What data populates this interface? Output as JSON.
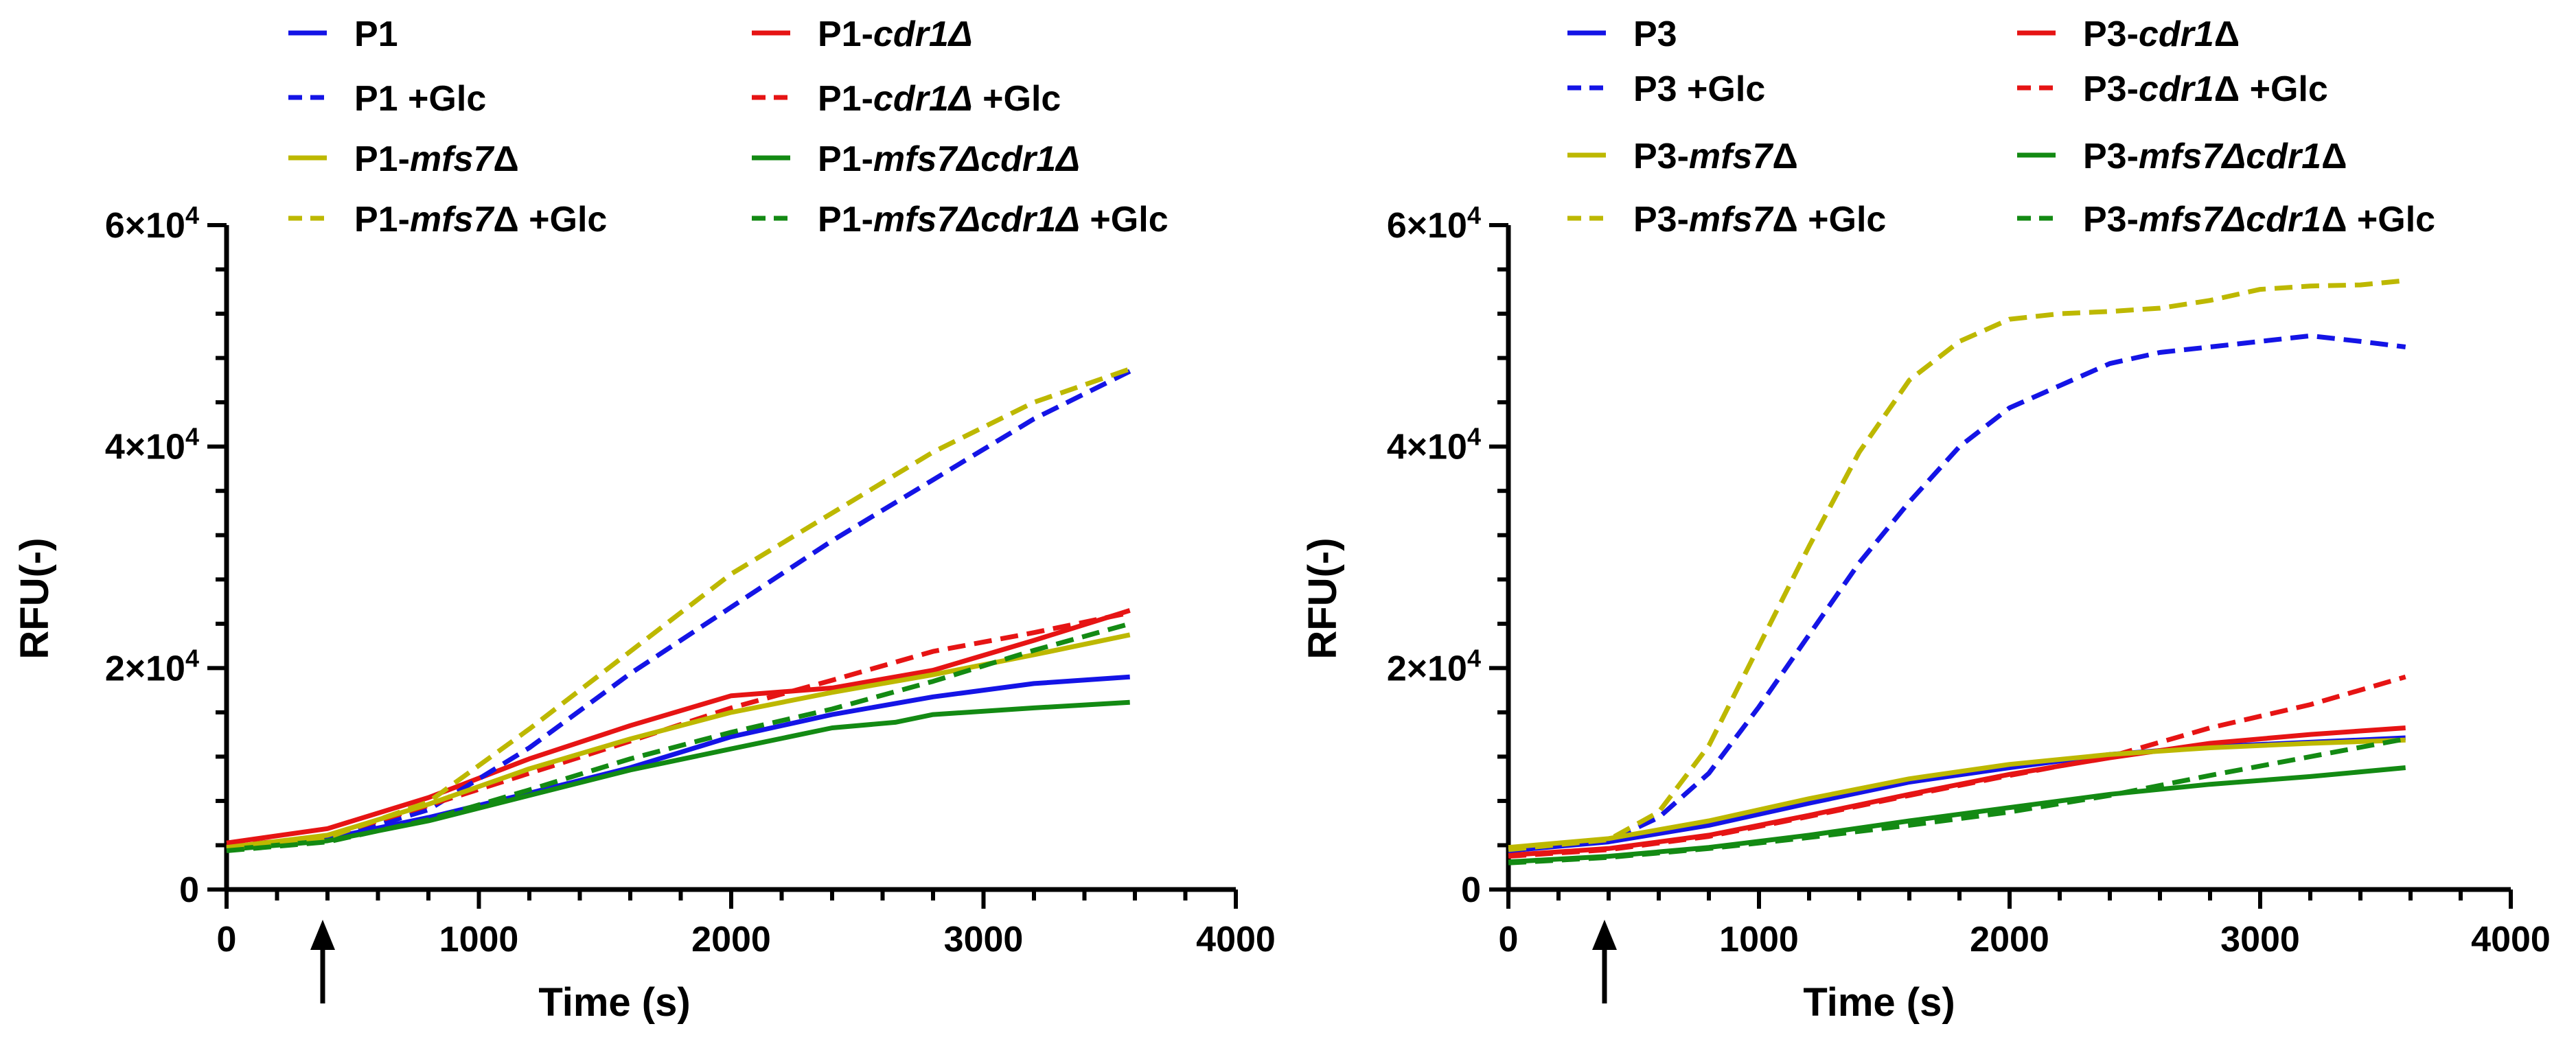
{
  "chart_data": [
    {
      "type": "line",
      "panel": "left",
      "xlabel": "Time (s)",
      "ylabel": "RFU(-)",
      "xlim": [
        0,
        4000
      ],
      "ylim": [
        0,
        60000
      ],
      "x_ticks": [
        "0",
        "1000",
        "2000",
        "3000",
        "4000"
      ],
      "y_ticks": [
        {
          "base": "0",
          "exp": ""
        },
        {
          "base": "2×10",
          "exp": "4"
        },
        {
          "base": "4×10",
          "exp": "4"
        },
        {
          "base": "6×10",
          "exp": "4"
        }
      ],
      "annotation": {
        "type": "arrow",
        "x": 400
      },
      "series": [
        {
          "name": "P1",
          "label_parts": [
            {
              "t": "P1"
            }
          ],
          "color": "#1414e6",
          "dash": "solid",
          "points": [
            [
              0,
              3600
            ],
            [
              400,
              4600
            ],
            [
              800,
              6500
            ],
            [
              1200,
              8700
            ],
            [
              1600,
              11000
            ],
            [
              2000,
              13800
            ],
            [
              2400,
              15800
            ],
            [
              2800,
              17400
            ],
            [
              3200,
              18600
            ],
            [
              3580,
              19200
            ]
          ]
        },
        {
          "name": "P1-cdr1Δ",
          "label_parts": [
            {
              "t": "P1-"
            },
            {
              "t": "cdr1Δ",
              "i": true
            }
          ],
          "color": "#e61414",
          "dash": "solid",
          "points": [
            [
              0,
              4200
            ],
            [
              400,
              5500
            ],
            [
              800,
              8300
            ],
            [
              1200,
              11800
            ],
            [
              1600,
              14800
            ],
            [
              2000,
              17500
            ],
            [
              2400,
              18200
            ],
            [
              2800,
              19800
            ],
            [
              3200,
              22500
            ],
            [
              3580,
              25200
            ]
          ]
        },
        {
          "name": "P1 +Glc",
          "label_parts": [
            {
              "t": "P1 +Glc"
            }
          ],
          "color": "#1414e6",
          "dash": "dashed",
          "points": [
            [
              0,
              3600
            ],
            [
              400,
              4500
            ],
            [
              800,
              7200
            ],
            [
              1200,
              12800
            ],
            [
              1600,
              19500
            ],
            [
              2000,
              25500
            ],
            [
              2400,
              31500
            ],
            [
              2800,
              37000
            ],
            [
              3200,
              42500
            ],
            [
              3580,
              46800
            ]
          ]
        },
        {
          "name": "P1-cdr1Δ +Glc",
          "label_parts": [
            {
              "t": "P1-"
            },
            {
              "t": "cdr1Δ",
              "i": true
            },
            {
              "t": " +Glc"
            }
          ],
          "color": "#e61414",
          "dash": "dashed",
          "points": [
            [
              0,
              3900
            ],
            [
              400,
              4800
            ],
            [
              800,
              7600
            ],
            [
              1200,
              10500
            ],
            [
              1600,
              13400
            ],
            [
              2000,
              16400
            ],
            [
              2400,
              18900
            ],
            [
              2800,
              21500
            ],
            [
              3200,
              23200
            ],
            [
              3580,
              25000
            ]
          ]
        },
        {
          "name": "P1-mfs7Δ",
          "label_parts": [
            {
              "t": "P1-"
            },
            {
              "t": "mfs7",
              "i": true
            },
            {
              "t": "Δ"
            }
          ],
          "color": "#bdb800",
          "dash": "solid",
          "points": [
            [
              0,
              3800
            ],
            [
              400,
              4900
            ],
            [
              800,
              7700
            ],
            [
              1200,
              10900
            ],
            [
              1600,
              13600
            ],
            [
              2000,
              16000
            ],
            [
              2400,
              17800
            ],
            [
              2800,
              19400
            ],
            [
              3200,
              21200
            ],
            [
              3580,
              23000
            ]
          ]
        },
        {
          "name": "P1-mfs7Δcdr1Δ",
          "label_parts": [
            {
              "t": "P1-"
            },
            {
              "t": "mfs7Δcdr1Δ",
              "i": true
            }
          ],
          "color": "#138a13",
          "dash": "solid",
          "points": [
            [
              0,
              3600
            ],
            [
              400,
              4400
            ],
            [
              800,
              6200
            ],
            [
              1200,
              8500
            ],
            [
              1600,
              10800
            ],
            [
              2000,
              12700
            ],
            [
              2400,
              14600
            ],
            [
              2650,
              15100
            ],
            [
              2800,
              15800
            ],
            [
              3200,
              16400
            ],
            [
              3580,
              16900
            ]
          ]
        },
        {
          "name": "P1-mfs7Δ +Glc",
          "label_parts": [
            {
              "t": "P1-"
            },
            {
              "t": "mfs7",
              "i": true
            },
            {
              "t": "Δ +Glc"
            }
          ],
          "color": "#bdb800",
          "dash": "dashed",
          "points": [
            [
              0,
              3700
            ],
            [
              400,
              4700
            ],
            [
              800,
              7900
            ],
            [
              1200,
              14500
            ],
            [
              1600,
              21500
            ],
            [
              2000,
              28500
            ],
            [
              2400,
              34000
            ],
            [
              2800,
              39500
            ],
            [
              3200,
              44000
            ],
            [
              3580,
              47000
            ]
          ]
        },
        {
          "name": "P1-mfs7Δcdr1Δ +Glc",
          "label_parts": [
            {
              "t": "P1-"
            },
            {
              "t": "mfs7Δcdr1Δ",
              "i": true
            },
            {
              "t": " +Glc"
            }
          ],
          "color": "#138a13",
          "dash": "dashed",
          "points": [
            [
              0,
              3500
            ],
            [
              400,
              4300
            ],
            [
              800,
              6300
            ],
            [
              1200,
              9000
            ],
            [
              1600,
              11800
            ],
            [
              2000,
              14200
            ],
            [
              2400,
              16300
            ],
            [
              2800,
              18800
            ],
            [
              3200,
              21600
            ],
            [
              3580,
              24000
            ]
          ]
        }
      ]
    },
    {
      "type": "line",
      "panel": "right",
      "xlabel": "Time (s)",
      "ylabel": "RFU(-)",
      "xlim": [
        0,
        4000
      ],
      "ylim": [
        0,
        60000
      ],
      "x_ticks": [
        "0",
        "1000",
        "2000",
        "3000",
        "4000"
      ],
      "y_ticks": [
        {
          "base": "0",
          "exp": ""
        },
        {
          "base": "2×10",
          "exp": "4"
        },
        {
          "base": "4×10",
          "exp": "4"
        },
        {
          "base": "6×10",
          "exp": "4"
        }
      ],
      "annotation": {
        "type": "arrow",
        "x": 400
      },
      "series": [
        {
          "name": "P3",
          "label_parts": [
            {
              "t": "P3"
            }
          ],
          "color": "#1414e6",
          "dash": "solid",
          "points": [
            [
              0,
              3500
            ],
            [
              400,
              4300
            ],
            [
              800,
              5800
            ],
            [
              1200,
              7800
            ],
            [
              1600,
              9700
            ],
            [
              2000,
              11000
            ],
            [
              2400,
              12200
            ],
            [
              2800,
              12900
            ],
            [
              3200,
              13300
            ],
            [
              3580,
              13700
            ]
          ]
        },
        {
          "name": "P3-cdr1Δ",
          "label_parts": [
            {
              "t": "P3-"
            },
            {
              "t": "cdr1",
              "i": true
            },
            {
              "t": "Δ"
            }
          ],
          "color": "#e61414",
          "dash": "solid",
          "points": [
            [
              0,
              3100
            ],
            [
              400,
              3700
            ],
            [
              800,
              4900
            ],
            [
              1200,
              6700
            ],
            [
              1600,
              8600
            ],
            [
              2000,
              10400
            ],
            [
              2400,
              11900
            ],
            [
              2800,
              13200
            ],
            [
              3200,
              14000
            ],
            [
              3580,
              14600
            ]
          ]
        },
        {
          "name": "P3 +Glc",
          "label_parts": [
            {
              "t": "P3 +Glc"
            }
          ],
          "color": "#1414e6",
          "dash": "dashed",
          "points": [
            [
              0,
              3500
            ],
            [
              400,
              4400
            ],
            [
              600,
              6500
            ],
            [
              800,
              10500
            ],
            [
              1000,
              16500
            ],
            [
              1200,
              23000
            ],
            [
              1400,
              29500
            ],
            [
              1600,
              35000
            ],
            [
              1800,
              40000
            ],
            [
              2000,
              43500
            ],
            [
              2200,
              45500
            ],
            [
              2400,
              47500
            ],
            [
              2600,
              48500
            ],
            [
              2800,
              49000
            ],
            [
              3000,
              49500
            ],
            [
              3200,
              50000
            ],
            [
              3400,
              49500
            ],
            [
              3580,
              49000
            ]
          ]
        },
        {
          "name": "P3-cdr1Δ +Glc",
          "label_parts": [
            {
              "t": "P3-"
            },
            {
              "t": "cdr1",
              "i": true
            },
            {
              "t": "Δ +Glc"
            }
          ],
          "color": "#e61414",
          "dash": "dashed",
          "points": [
            [
              0,
              3000
            ],
            [
              400,
              3600
            ],
            [
              800,
              4800
            ],
            [
              1200,
              6600
            ],
            [
              1600,
              8500
            ],
            [
              2000,
              10300
            ],
            [
              2400,
              12000
            ],
            [
              2800,
              14600
            ],
            [
              3200,
              16700
            ],
            [
              3580,
              19200
            ]
          ]
        },
        {
          "name": "P3-mfs7Δ",
          "label_parts": [
            {
              "t": "P3-"
            },
            {
              "t": "mfs7",
              "i": true
            },
            {
              "t": "Δ"
            }
          ],
          "color": "#bdb800",
          "dash": "solid",
          "points": [
            [
              0,
              3800
            ],
            [
              400,
              4600
            ],
            [
              800,
              6200
            ],
            [
              1200,
              8200
            ],
            [
              1600,
              10000
            ],
            [
              2000,
              11300
            ],
            [
              2400,
              12200
            ],
            [
              2800,
              12800
            ],
            [
              3200,
              13200
            ],
            [
              3580,
              13500
            ]
          ]
        },
        {
          "name": "P3-mfs7Δcdr1Δ",
          "label_parts": [
            {
              "t": "P3-"
            },
            {
              "t": "mfs7Δcdr1",
              "i": true
            },
            {
              "t": "Δ"
            }
          ],
          "color": "#138a13",
          "dash": "solid",
          "points": [
            [
              0,
              2500
            ],
            [
              400,
              3000
            ],
            [
              800,
              3800
            ],
            [
              1200,
              4900
            ],
            [
              1600,
              6200
            ],
            [
              2000,
              7400
            ],
            [
              2400,
              8600
            ],
            [
              2800,
              9500
            ],
            [
              3200,
              10200
            ],
            [
              3580,
              11000
            ]
          ]
        },
        {
          "name": "P3-mfs7Δ +Glc",
          "label_parts": [
            {
              "t": "P3-"
            },
            {
              "t": "mfs7",
              "i": true
            },
            {
              "t": "Δ +Glc"
            }
          ],
          "color": "#bdb800",
          "dash": "dashed",
          "points": [
            [
              0,
              3600
            ],
            [
              400,
              4500
            ],
            [
              600,
              7000
            ],
            [
              800,
              13000
            ],
            [
              1000,
              22000
            ],
            [
              1200,
              31000
            ],
            [
              1400,
              39500
            ],
            [
              1600,
              46000
            ],
            [
              1800,
              49500
            ],
            [
              2000,
              51500
            ],
            [
              2200,
              52000
            ],
            [
              2400,
              52200
            ],
            [
              2600,
              52500
            ],
            [
              2800,
              53200
            ],
            [
              3000,
              54200
            ],
            [
              3200,
              54500
            ],
            [
              3400,
              54600
            ],
            [
              3580,
              55000
            ]
          ]
        },
        {
          "name": "P3-mfs7Δcdr1Δ +Glc",
          "label_parts": [
            {
              "t": "P3-"
            },
            {
              "t": "mfs7Δcdr1",
              "i": true
            },
            {
              "t": "Δ +Glc"
            }
          ],
          "color": "#138a13",
          "dash": "dashed",
          "points": [
            [
              0,
              2400
            ],
            [
              400,
              2900
            ],
            [
              800,
              3700
            ],
            [
              1200,
              4700
            ],
            [
              1600,
              5800
            ],
            [
              2000,
              7000
            ],
            [
              2400,
              8500
            ],
            [
              2800,
              10300
            ],
            [
              3200,
              12000
            ],
            [
              3580,
              13600
            ]
          ]
        }
      ]
    }
  ]
}
